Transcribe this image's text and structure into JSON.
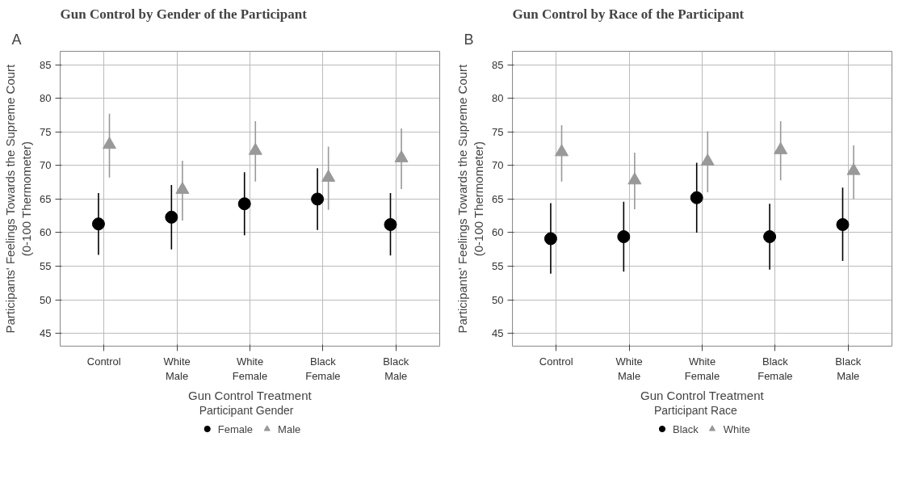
{
  "chart_data": [
    {
      "type": "scatter",
      "title": "Gun Control by Gender of the Participant",
      "annotations": [
        "A"
      ],
      "xlabel": "Gun Control Treatment",
      "ylabel": "Participants' Feelings Towards the Supreme Court\n(0-100 Thermometer)",
      "legend_title": "Participant Gender",
      "legend": "bottom",
      "grid": true,
      "categories": [
        "Control",
        "White Male",
        "White Female",
        "Black Female",
        "Black Male"
      ],
      "ylim": [
        43.1,
        87
      ],
      "yticks": [
        45,
        50,
        55,
        60,
        65,
        70,
        75,
        80,
        85
      ],
      "series": [
        {
          "name": "Female",
          "color": "#000000",
          "marker": "circle",
          "values": [
            61.3,
            62.3,
            64.3,
            65.0,
            61.2
          ],
          "errors": [
            [
              56.7,
              65.9
            ],
            [
              57.5,
              67.1
            ],
            [
              59.6,
              69.0
            ],
            [
              60.4,
              69.6
            ],
            [
              56.6,
              65.9
            ]
          ]
        },
        {
          "name": "Male",
          "color": "#999999",
          "marker": "triangle",
          "values": [
            73.1,
            66.4,
            72.2,
            68.2,
            71.1
          ],
          "errors": [
            [
              68.2,
              77.7
            ],
            [
              61.8,
              70.7
            ],
            [
              67.6,
              76.6
            ],
            [
              63.4,
              72.8
            ],
            [
              66.5,
              75.5
            ]
          ]
        }
      ]
    },
    {
      "type": "scatter",
      "title": "Gun Control by Race of the Participant",
      "annotations": [
        "B"
      ],
      "xlabel": "Gun Control Treatment",
      "ylabel": "Participants' Feelings Towards the Supreme Court\n(0-100 Thermometer)",
      "legend_title": "Participant Race",
      "legend": "bottom",
      "grid": true,
      "categories": [
        "Control",
        "White Male",
        "White Female",
        "Black Female",
        "Black Male"
      ],
      "ylim": [
        43.1,
        87
      ],
      "yticks": [
        45,
        50,
        55,
        60,
        65,
        70,
        75,
        80,
        85
      ],
      "series": [
        {
          "name": "Black",
          "color": "#000000",
          "marker": "circle",
          "values": [
            59.1,
            59.4,
            65.2,
            59.4,
            61.2
          ],
          "errors": [
            [
              53.9,
              64.4
            ],
            [
              54.2,
              64.6
            ],
            [
              60.0,
              70.4
            ],
            [
              54.5,
              64.3
            ],
            [
              55.8,
              66.7
            ]
          ]
        },
        {
          "name": "White",
          "color": "#999999",
          "marker": "triangle",
          "values": [
            72.0,
            67.8,
            70.6,
            72.3,
            69.2
          ],
          "errors": [
            [
              67.6,
              76.0
            ],
            [
              63.5,
              71.9
            ],
            [
              66.0,
              75.1
            ],
            [
              67.8,
              76.6
            ],
            [
              65.0,
              73.0
            ]
          ]
        }
      ]
    }
  ]
}
